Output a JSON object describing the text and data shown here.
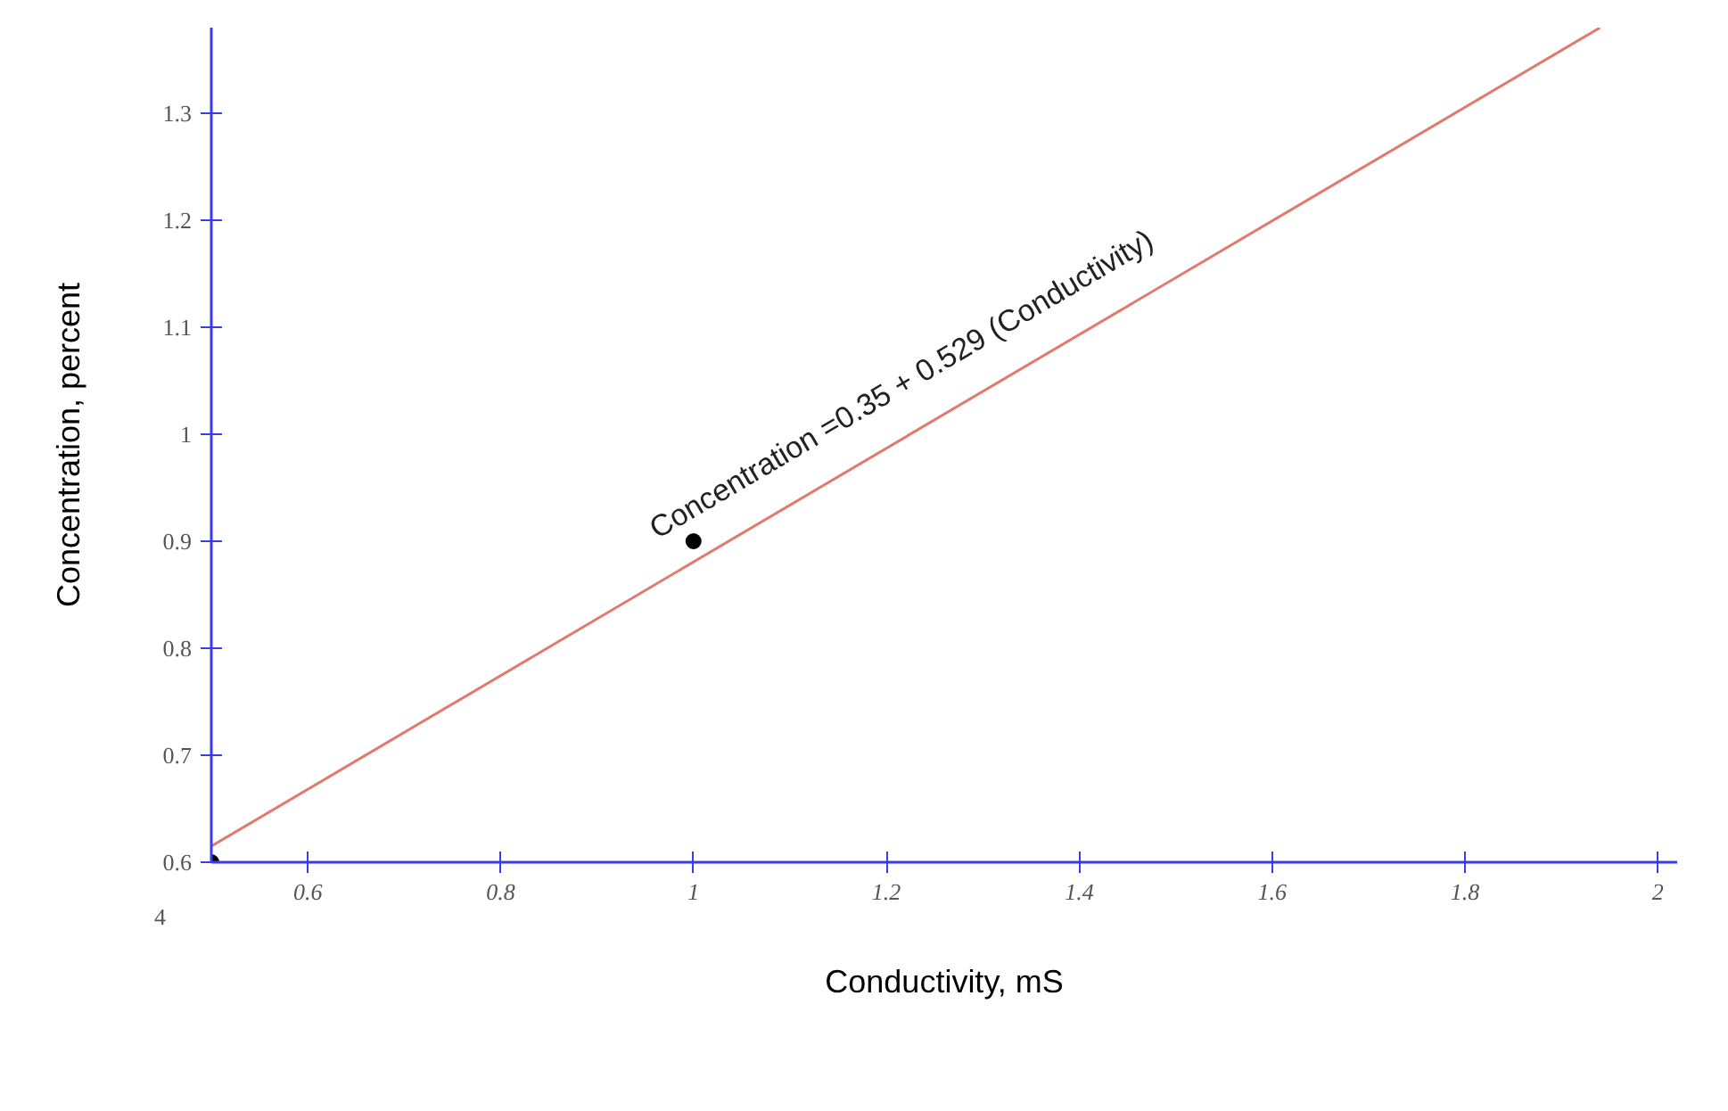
{
  "chart_data": {
    "type": "scatter",
    "xlabel": "Conductivity, mS",
    "ylabel": "Concentration, percent",
    "xlim": [
      0.5,
      2.02
    ],
    "ylim": [
      0.6,
      1.38
    ],
    "xticks": [
      0.6,
      0.8,
      1,
      1.2,
      1.4,
      1.6,
      1.8,
      2
    ],
    "yticks": [
      0.6,
      0.7,
      0.8,
      0.9,
      1,
      1.1,
      1.2,
      1.3
    ],
    "grid": false,
    "series": [
      {
        "color": "#000000",
        "marker": "circle",
        "x": [
          0.5,
          1.0
        ],
        "values": [
          0.6,
          0.9
        ]
      },
      {
        "type": "line",
        "color": "#e07a6a",
        "x": [
          0.5,
          1.94
        ],
        "values": [
          0.615,
          1.38
        ]
      }
    ],
    "annotations": [
      "Concentration =0.35 + 0.529 (Conductivity)",
      "4"
    ]
  }
}
